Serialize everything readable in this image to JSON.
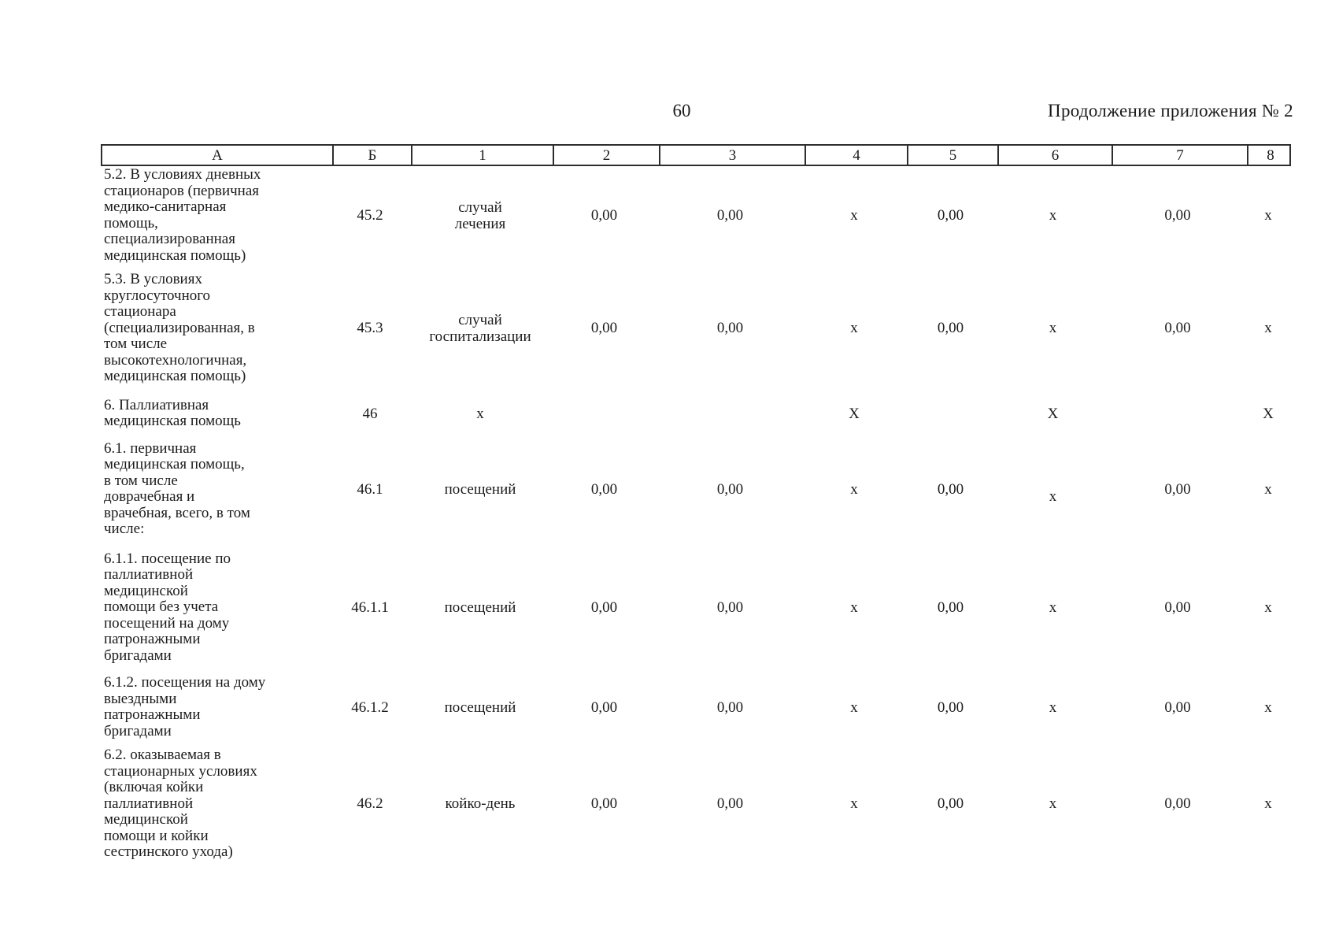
{
  "page": {
    "number": "60",
    "continuation_note": "Продолжение приложения № 2"
  },
  "table": {
    "column_headers": [
      "А",
      "Б",
      "1",
      "2",
      "3",
      "4",
      "5",
      "6",
      "7",
      "8"
    ],
    "rows": [
      {
        "indicator": "5.2. В условиях дневных\nстационаров (первичная\nмедико-санитарная\nпомощь,\nспециализированная\nмедицинская помощь)",
        "line_code": "45.2",
        "unit": "случай\nлечения",
        "values": [
          "0,00",
          "0,00",
          "х",
          "0,00",
          "х",
          "0,00",
          "х"
        ]
      },
      {
        "indicator": "5.3. В условиях\nкруглосуточного\nстационара\n(специализированная, в\nтом числе\nвысокотехнологичная,\nмедицинская помощь)",
        "line_code": "45.3",
        "unit": "случай\nгоспитализации",
        "values": [
          "0,00",
          "0,00",
          "х",
          "0,00",
          "х",
          "0,00",
          "х"
        ]
      },
      {
        "indicator": "6. Паллиативная\nмедицинская помощь",
        "line_code": "46",
        "unit": "х",
        "values": [
          "",
          "",
          "Х",
          "",
          "Х",
          "",
          "Х"
        ]
      },
      {
        "indicator": "6.1. первичная\nмедицинская помощь,\nв том числе\nдоврачебная и\nврачебная, всего, в том\nчисле:",
        "line_code": "46.1",
        "unit": "посещений",
        "values": [
          "0,00",
          "0,00",
          "х",
          "0,00",
          "х",
          "0,00",
          "х"
        ]
      },
      {
        "indicator": "6.1.1. посещение по\nпаллиативной\nмедицинской\nпомощи без учета\nпосещений на дому\nпатронажными\nбригадами",
        "line_code": "46.1.1",
        "unit": "посещений",
        "values": [
          "0,00",
          "0,00",
          "х",
          "0,00",
          "х",
          "0,00",
          "х"
        ]
      },
      {
        "indicator": "6.1.2. посещения на дому\nвыездными\nпатронажными\nбригадами",
        "line_code": "46.1.2",
        "unit": "посещений",
        "values": [
          "0,00",
          "0,00",
          "х",
          "0,00",
          "х",
          "0,00",
          "х"
        ]
      },
      {
        "indicator": "6.2. оказываемая в\nстационарных условиях\n(включая койки\nпаллиативной\nмедицинской\nпомощи и койки\nсестринского ухода)",
        "line_code": "46.2",
        "unit": "койко-день",
        "values": [
          "0,00",
          "0,00",
          "х",
          "0,00",
          "х",
          "0,00",
          "х"
        ]
      }
    ]
  }
}
